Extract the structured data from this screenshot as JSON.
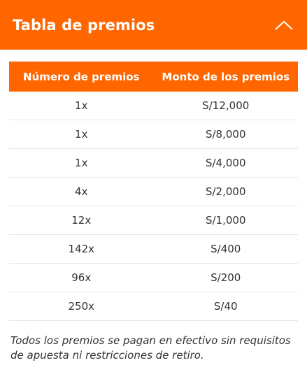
{
  "header": {
    "title": "Tabla de premios",
    "toggle_icon": "chevron-up-icon"
  },
  "table": {
    "columns": [
      "Número de premios",
      "Monto de los premios"
    ],
    "rows": [
      {
        "count": "1x",
        "amount": "S/12,000"
      },
      {
        "count": "1x",
        "amount": "S/8,000"
      },
      {
        "count": "1x",
        "amount": "S/4,000"
      },
      {
        "count": "4x",
        "amount": "S/2,000"
      },
      {
        "count": "12x",
        "amount": "S/1,000"
      },
      {
        "count": "142x",
        "amount": "S/400"
      },
      {
        "count": "96x",
        "amount": "S/200"
      },
      {
        "count": "250x",
        "amount": "S/40"
      }
    ]
  },
  "note": "Todos los premios se pagan en efectivo sin requisitos de apuesta ni restricciones de retiro.",
  "colors": {
    "accent": "#ff6600",
    "text": "#333333",
    "divider": "#e6e6e6"
  }
}
